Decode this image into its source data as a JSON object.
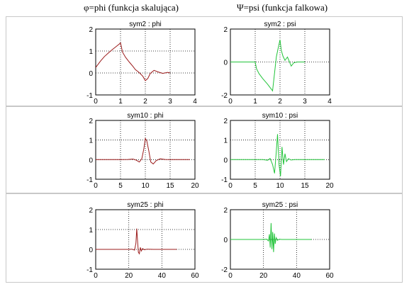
{
  "header": {
    "phi_title": "φ=phi (funkcja skalująca)",
    "psi_title": "Ψ=psi (funkcja falkowa)"
  },
  "colors": {
    "phi_line": "#9b1b1b",
    "psi_line": "#22c43a",
    "panel_border": "#c8c8c8",
    "grid": "#000000"
  },
  "chart_data": [
    {
      "type": "line",
      "title": "sym2 : phi",
      "xlabel": "",
      "ylabel": "",
      "xlim": [
        0,
        4
      ],
      "ylim": [
        -1,
        2
      ],
      "xticks": [
        "0",
        "1",
        "2",
        "3",
        "4"
      ],
      "yticks": [
        "-1",
        "0",
        "1",
        "2"
      ],
      "grid": true,
      "color": "#9b1b1b",
      "x": [
        0,
        0.1,
        0.2,
        0.35,
        0.5,
        0.65,
        0.8,
        0.95,
        1.0,
        1.08,
        1.2,
        1.35,
        1.5,
        1.6,
        1.75,
        1.9,
        2.0,
        2.1,
        2.2,
        2.35,
        2.5,
        2.7,
        2.9,
        3.0
      ],
      "y": [
        0.25,
        0.4,
        0.55,
        0.75,
        0.9,
        1.05,
        1.18,
        1.32,
        1.37,
        0.95,
        0.72,
        0.5,
        0.3,
        0.15,
        0.02,
        -0.15,
        -0.35,
        -0.25,
        -0.02,
        0.12,
        0.05,
        -0.02,
        0.03,
        0
      ]
    },
    {
      "type": "line",
      "title": "sym2 : psi",
      "xlabel": "",
      "ylabel": "",
      "xlim": [
        0,
        4
      ],
      "ylim": [
        -2,
        2
      ],
      "xticks": [
        "0",
        "1",
        "2",
        "3",
        "4"
      ],
      "yticks": [
        "-2",
        "0",
        "2"
      ],
      "grid": true,
      "color": "#22c43a",
      "x": [
        0,
        0.2,
        0.4,
        0.6,
        0.8,
        1.0,
        1.05,
        1.15,
        1.3,
        1.5,
        1.7,
        1.85,
        1.92,
        2.0,
        2.05,
        2.12,
        2.2,
        2.3,
        2.45,
        2.55,
        2.7,
        3.0
      ],
      "y": [
        0,
        0,
        0,
        0,
        0,
        0,
        -0.4,
        -0.7,
        -1.0,
        -1.35,
        -1.75,
        0.3,
        0.8,
        1.35,
        0.7,
        0.35,
        0.1,
        0.3,
        -0.25,
        -0.05,
        0,
        0
      ]
    },
    {
      "type": "line",
      "title": "sym10 : phi",
      "xlabel": "",
      "ylabel": "",
      "xlim": [
        0,
        20
      ],
      "ylim": [
        -1,
        2
      ],
      "xticks": [
        "0",
        "5",
        "10",
        "15",
        "20"
      ],
      "yticks": [
        "-1",
        "0",
        "1",
        "2"
      ],
      "grid": true,
      "color": "#9b1b1b",
      "x": [
        0,
        3,
        5,
        6.5,
        7.5,
        8.2,
        8.8,
        9.3,
        9.7,
        10.0,
        10.3,
        10.7,
        11.1,
        11.6,
        12.2,
        13,
        14,
        15,
        16,
        19
      ],
      "y": [
        0,
        0,
        0,
        0.01,
        0.03,
        -0.03,
        -0.12,
        0.05,
        0.55,
        1.08,
        0.95,
        0.45,
        -0.12,
        -0.22,
        -0.05,
        0.04,
        0.01,
        0,
        0,
        0
      ]
    },
    {
      "type": "line",
      "title": "sym10 : psi",
      "xlabel": "",
      "ylabel": "",
      "xlim": [
        0,
        20
      ],
      "ylim": [
        -1,
        2
      ],
      "xticks": [
        "0",
        "5",
        "10",
        "15",
        "20"
      ],
      "yticks": [
        "-1",
        "0",
        "1",
        "2"
      ],
      "grid": true,
      "color": "#22c43a",
      "x": [
        0,
        5,
        6.5,
        7.5,
        8.0,
        8.5,
        8.9,
        9.2,
        9.5,
        9.8,
        10.1,
        10.4,
        10.7,
        11.0,
        11.3,
        11.7,
        12.2,
        13,
        19
      ],
      "y": [
        0,
        0,
        0,
        -0.03,
        0.06,
        -0.25,
        -0.7,
        0.25,
        1.3,
        -0.25,
        -0.85,
        0.65,
        -0.25,
        0.3,
        -0.1,
        0.05,
        -0.02,
        0,
        0
      ]
    },
    {
      "type": "line",
      "title": "sym25 : phi",
      "xlabel": "",
      "ylabel": "",
      "xlim": [
        0,
        60
      ],
      "ylim": [
        -1,
        2
      ],
      "xticks": [
        "0",
        "20",
        "40",
        "60"
      ],
      "yticks": [
        "-1",
        "0",
        "1",
        "2"
      ],
      "grid": true,
      "color": "#9b1b1b",
      "x": [
        0,
        10,
        20,
        22,
        23.5,
        24.3,
        24.8,
        25.3,
        25.8,
        26.4,
        27.0,
        27.6,
        28.3,
        29.5,
        31,
        35,
        49
      ],
      "y": [
        0,
        0,
        0,
        0.01,
        -0.04,
        0.3,
        1.05,
        0.45,
        -0.15,
        -0.22,
        0.1,
        -0.08,
        0.04,
        -0.02,
        0.01,
        0,
        0
      ]
    },
    {
      "type": "line",
      "title": "sym25 : psi",
      "xlabel": "",
      "ylabel": "",
      "xlim": [
        0,
        60
      ],
      "ylim": [
        -2,
        2
      ],
      "xticks": [
        "0",
        "20",
        "40",
        "60"
      ],
      "yticks": [
        "-2",
        "0",
        "2"
      ],
      "grid": true,
      "color": "#22c43a",
      "x": [
        0,
        20,
        22,
        23.0,
        23.6,
        24.1,
        24.6,
        25.1,
        25.6,
        26.1,
        26.6,
        27.1,
        27.7,
        28.4,
        29.5,
        31,
        35,
        49
      ],
      "y": [
        0,
        0,
        0.02,
        -0.1,
        0.35,
        -0.55,
        1.1,
        -0.65,
        0.5,
        -0.85,
        0.4,
        -0.3,
        0.12,
        -0.06,
        0.02,
        0,
        0,
        0
      ]
    }
  ]
}
